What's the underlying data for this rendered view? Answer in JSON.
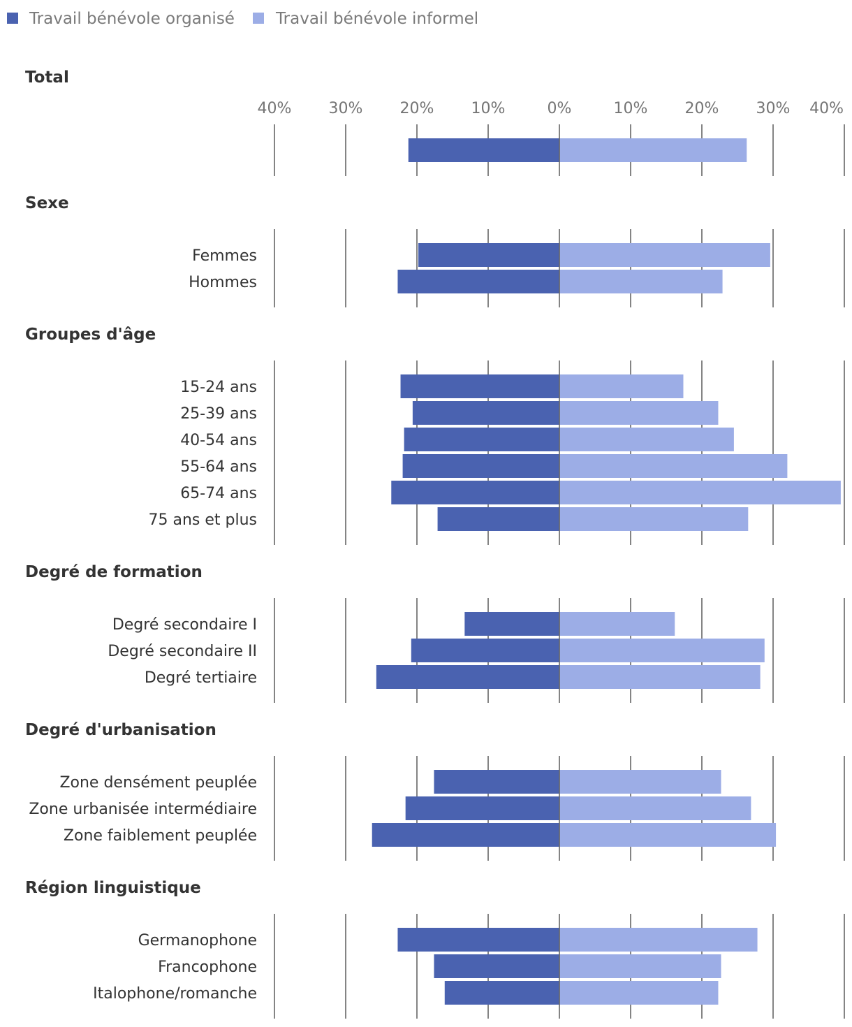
{
  "chart_data": {
    "type": "bar",
    "orientation": "horizontal-diverging",
    "legend": [
      {
        "name": "Travail bénévole organisé",
        "color": "#4a62b0"
      },
      {
        "name": "Travail bénévole informel",
        "color": "#9cade6"
      }
    ],
    "legend_position": "top-left",
    "xlim": [
      -40,
      40
    ],
    "x_ticks": [
      -40,
      -30,
      -20,
      -10,
      0,
      10,
      20,
      30,
      40
    ],
    "x_tick_labels": [
      "40%",
      "30%",
      "20%",
      "10%",
      "0%",
      "10%",
      "20%",
      "30%",
      "40%"
    ],
    "grid": true,
    "groups": [
      {
        "title": "Total",
        "categories": [
          ""
        ],
        "organise": [
          21.2
        ],
        "informel": [
          26.3
        ]
      },
      {
        "title": "Sexe",
        "categories": [
          "Femmes",
          "Hommes"
        ],
        "organise": [
          19.8,
          22.7
        ],
        "informel": [
          29.6,
          22.9
        ]
      },
      {
        "title": "Groupes d'âge",
        "categories": [
          "15-24 ans",
          "25-39 ans",
          "40-54 ans",
          "55-64 ans",
          "65-74 ans",
          "75 ans et plus"
        ],
        "organise": [
          22.3,
          20.6,
          21.8,
          22.0,
          23.6,
          17.1
        ],
        "informel": [
          17.4,
          22.3,
          24.5,
          32.0,
          39.5,
          26.5
        ]
      },
      {
        "title": "Degré de formation",
        "categories": [
          "Degré secondaire I",
          "Degré secondaire II",
          "Degré tertiaire"
        ],
        "organise": [
          13.3,
          20.8,
          25.7
        ],
        "informel": [
          16.2,
          28.8,
          28.2
        ]
      },
      {
        "title": "Degré d'urbanisation",
        "categories": [
          "Zone densément peuplée",
          "Zone urbanisée intermédiaire",
          "Zone faiblement peuplée"
        ],
        "organise": [
          17.6,
          21.6,
          26.3
        ],
        "informel": [
          22.7,
          26.9,
          30.4
        ]
      },
      {
        "title": "Région linguistique",
        "categories": [
          "Germanophone",
          "Francophone",
          "Italophone/romanche"
        ],
        "organise": [
          22.7,
          17.6,
          16.1
        ],
        "informel": [
          27.8,
          22.7,
          22.3
        ]
      }
    ]
  }
}
